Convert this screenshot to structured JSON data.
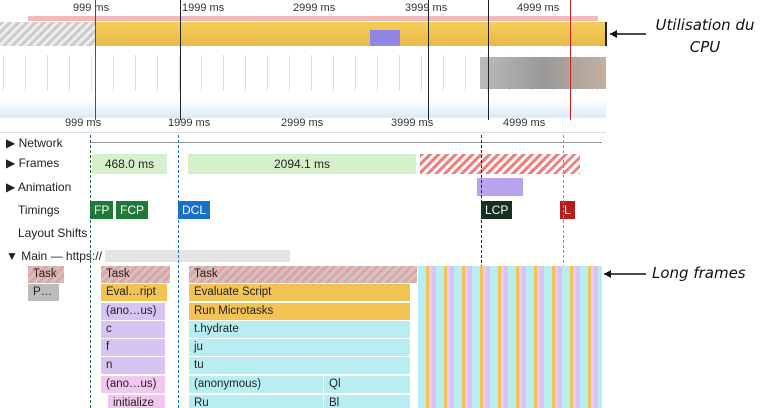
{
  "overview": {
    "ticks": [
      "999 ms",
      "1999 ms",
      "2999 ms",
      "3999 ms",
      "4999 ms"
    ]
  },
  "ruler": {
    "ticks": [
      "999 ms",
      "1999 ms",
      "2999 ms",
      "3999 ms",
      "4999 ms"
    ]
  },
  "tracks": {
    "network": "Network",
    "frames": "Frames",
    "animation": "Animation",
    "timings": "Timings",
    "layout_shifts": "Layout Shifts",
    "main": "Main — https://"
  },
  "frames": [
    "468.0 ms",
    "2094.1 ms"
  ],
  "timings": [
    "FP",
    "FCP",
    "DCL",
    "LCP",
    "L"
  ],
  "flame": {
    "rows": [
      [
        "Task",
        "Task",
        "Task"
      ],
      [
        "P…",
        "Eval…ript",
        "Evaluate Script"
      ],
      [
        "(ano…us)",
        "Run Microtasks"
      ],
      [
        "c",
        "t.hydrate"
      ],
      [
        "f",
        "ju"
      ],
      [
        "n",
        "tu"
      ],
      [
        "(ano…us)",
        "(anonymous)",
        "Ql"
      ],
      [
        "initialize",
        "Ru",
        "Bl"
      ]
    ]
  },
  "annotations": {
    "cpu": "Utilisation du CPU",
    "long_frames": "Long frames"
  }
}
